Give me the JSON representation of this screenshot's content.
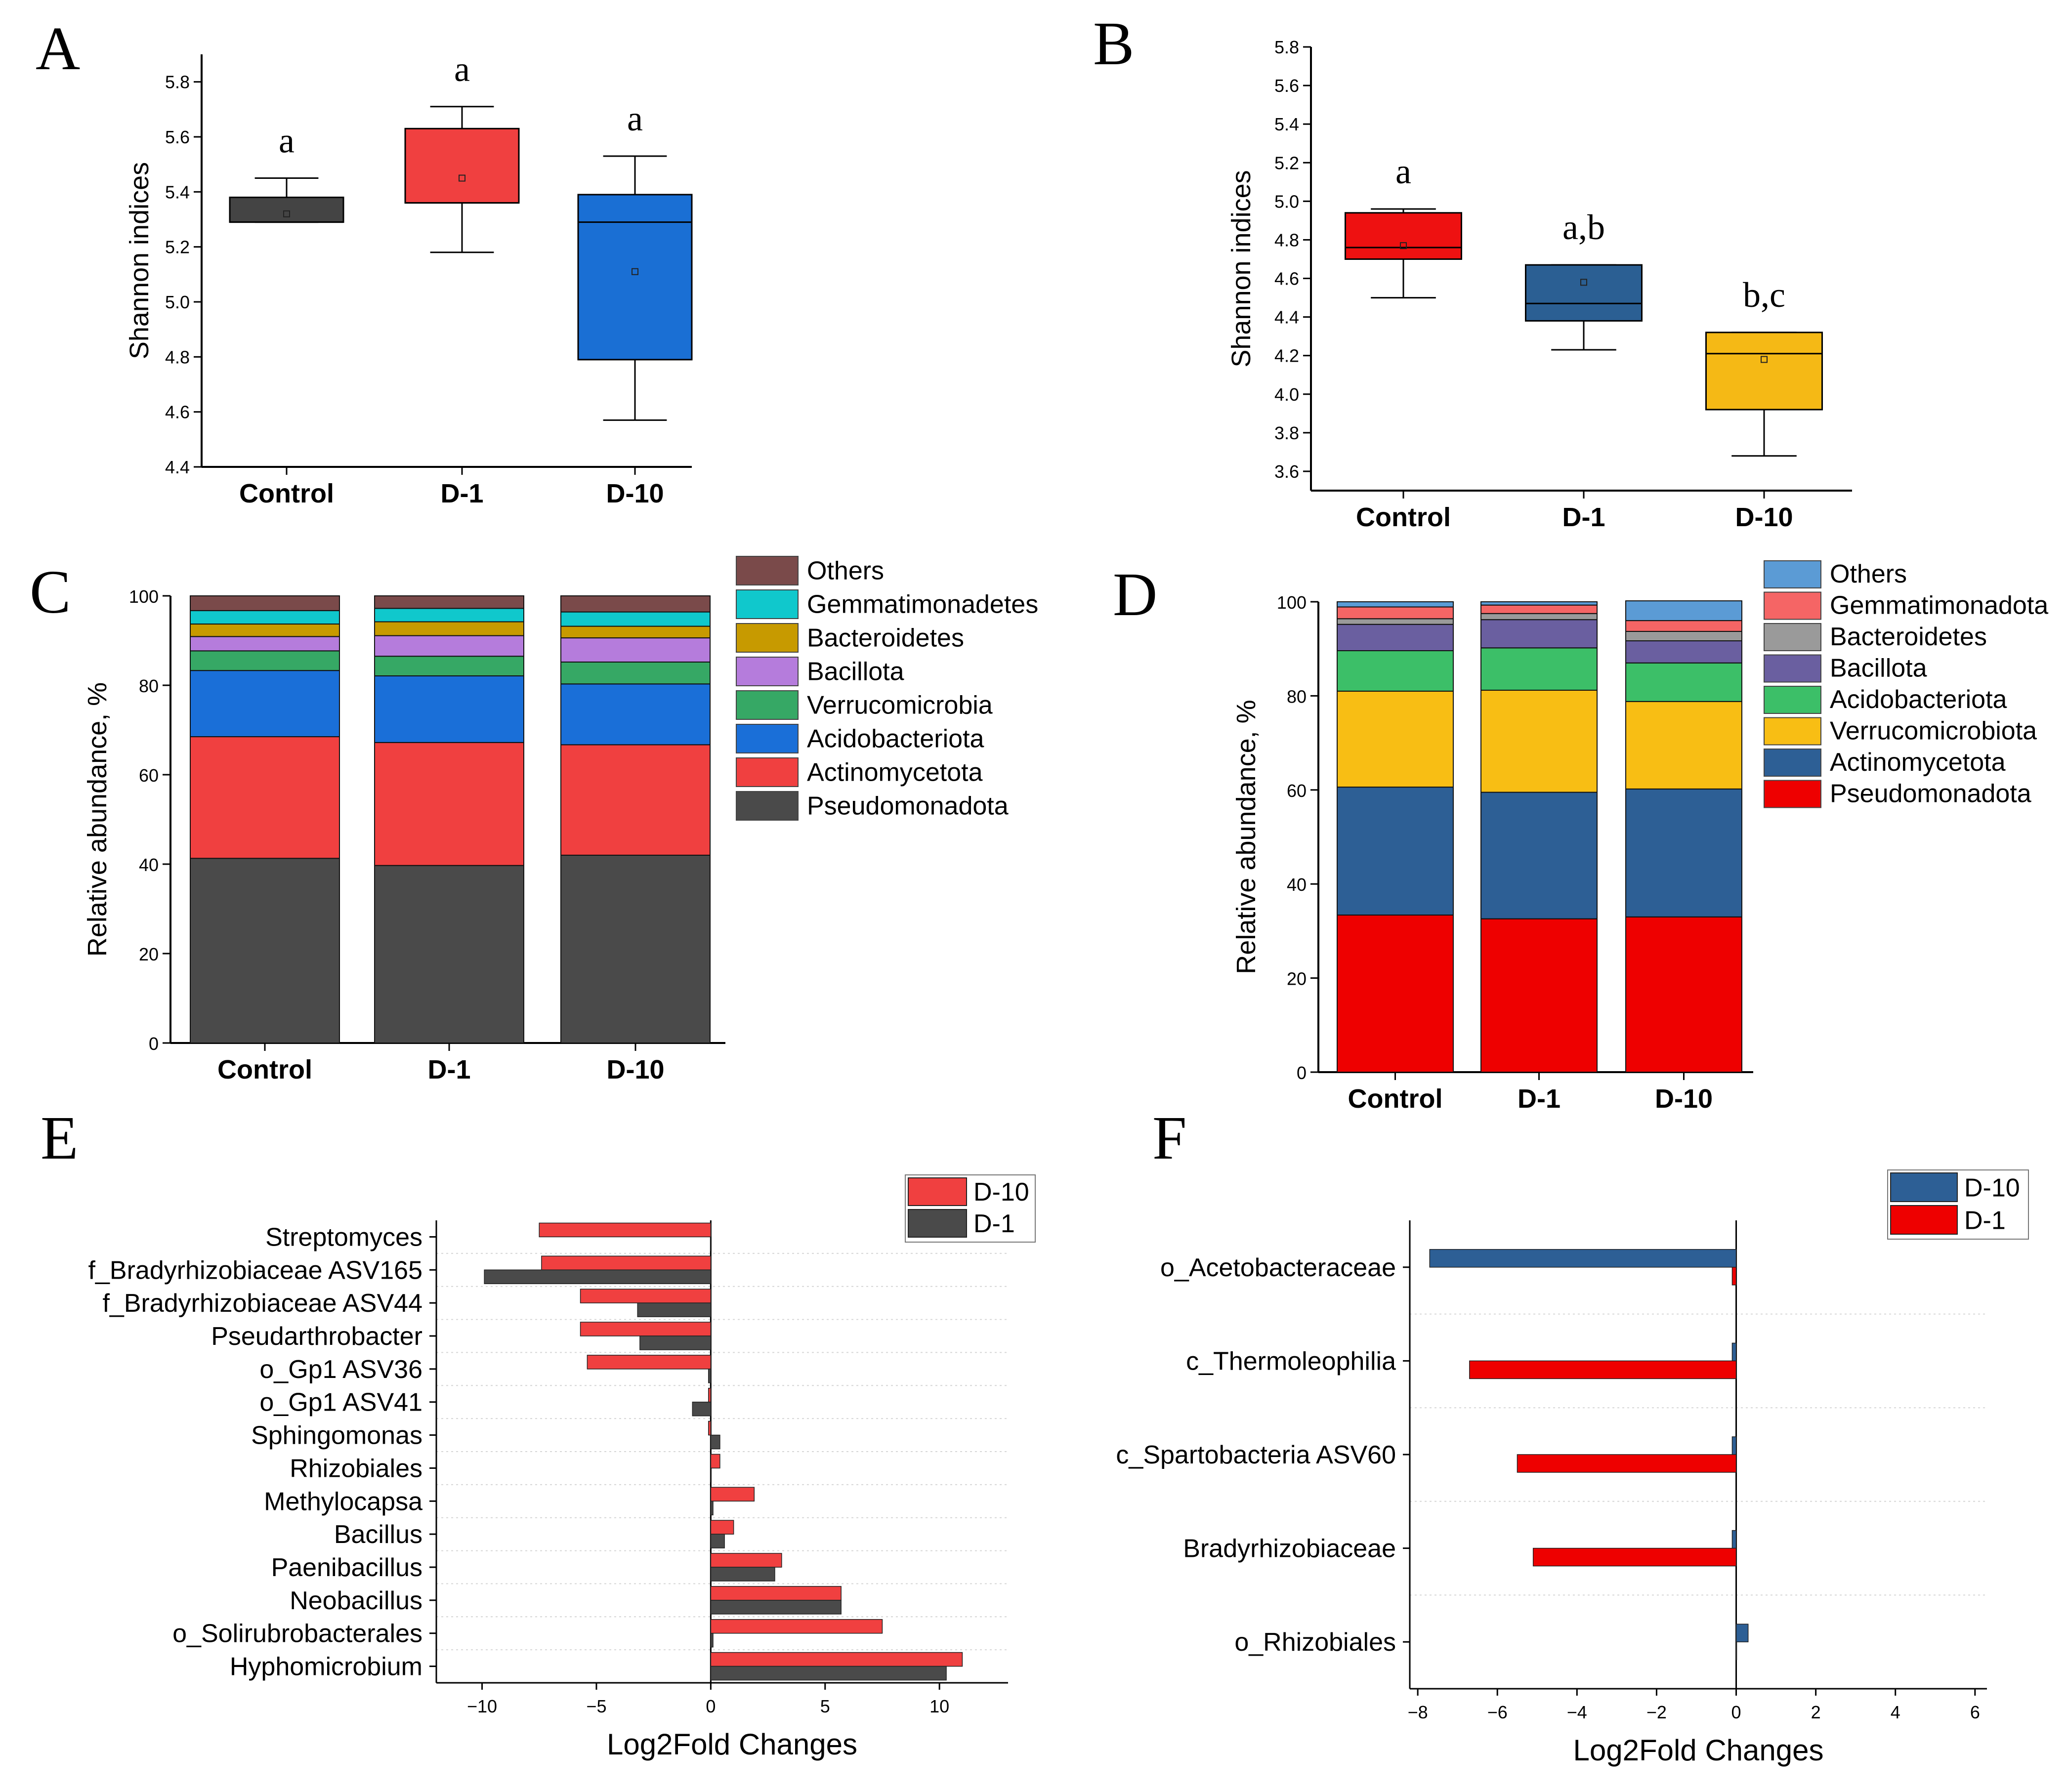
{
  "chart_data": [
    {
      "panel": "A",
      "type": "box",
      "ylabel": "Shannon indices",
      "ylim": [
        4.4,
        5.9
      ],
      "yticks": [
        "4.4",
        "4.6",
        "4.8",
        "5.0",
        "5.2",
        "5.4",
        "5.6",
        "5.8"
      ],
      "categories": [
        "Control",
        "D-1",
        "D-10"
      ],
      "colors": [
        "#444444",
        "#f04040",
        "#1a6fd4"
      ],
      "boxes": [
        {
          "whisker_low": 5.29,
          "q1": 5.29,
          "median": 5.29,
          "q3": 5.38,
          "whisker_high": 5.45,
          "mean": 5.32,
          "sig": "a"
        },
        {
          "whisker_low": 5.18,
          "q1": 5.36,
          "median": 5.36,
          "q3": 5.63,
          "whisker_high": 5.71,
          "mean": 5.45,
          "sig": "a"
        },
        {
          "whisker_low": 4.57,
          "q1": 4.79,
          "median": 5.29,
          "q3": 5.39,
          "whisker_high": 5.53,
          "mean": 5.11,
          "sig": "a"
        }
      ]
    },
    {
      "panel": "B",
      "type": "box",
      "ylabel": "Shannon indices",
      "ylim": [
        3.5,
        5.8
      ],
      "yticks": [
        "3.6",
        "3.8",
        "4.0",
        "4.2",
        "4.4",
        "4.6",
        "4.8",
        "5.0",
        "5.2",
        "5.4",
        "5.6",
        "5.8"
      ],
      "categories": [
        "Control",
        "D-1",
        "D-10"
      ],
      "colors": [
        "#ee1111",
        "#2b5f93",
        "#f5b915"
      ],
      "boxes": [
        {
          "whisker_low": 4.5,
          "q1": 4.7,
          "median": 4.76,
          "q3": 4.94,
          "whisker_high": 4.96,
          "mean": 4.77,
          "sig": "a"
        },
        {
          "whisker_low": 4.23,
          "q1": 4.38,
          "median": 4.47,
          "q3": 4.67,
          "whisker_high": 4.67,
          "mean": 4.58,
          "sig": "a,b"
        },
        {
          "whisker_low": 3.68,
          "q1": 3.92,
          "median": 4.21,
          "q3": 4.32,
          "whisker_high": 4.32,
          "mean": 4.18,
          "sig": "b,c"
        }
      ]
    },
    {
      "panel": "C",
      "type": "stacked_bar",
      "ylabel": "Relative abundance, %",
      "ylim": [
        0,
        100
      ],
      "yticks": [
        "0",
        "20",
        "40",
        "60",
        "80",
        "100"
      ],
      "categories": [
        "Control",
        "D-1",
        "D-10"
      ],
      "series": [
        {
          "name": "Pseudomonadota",
          "color": "#4a4a4a",
          "values": [
            41.3,
            39.7,
            42.0
          ]
        },
        {
          "name": "Actinomycetota",
          "color": "#f04040",
          "values": [
            27.2,
            27.5,
            24.7
          ]
        },
        {
          "name": "Acidobacteriota",
          "color": "#1a6fd8",
          "values": [
            14.8,
            14.9,
            13.6
          ]
        },
        {
          "name": "Verrucomicrobia",
          "color": "#36a865",
          "values": [
            4.4,
            4.4,
            4.9
          ]
        },
        {
          "name": "Bacillota",
          "color": "#b57cdc",
          "values": [
            3.2,
            4.6,
            5.4
          ]
        },
        {
          "name": "Bacteroidetes",
          "color": "#c79a00",
          "values": [
            2.8,
            3.1,
            2.6
          ]
        },
        {
          "name": "Gemmatimonadetes",
          "color": "#10c8cc",
          "values": [
            3.0,
            3.0,
            3.2
          ]
        },
        {
          "name": "Others",
          "color": "#7a4a4a",
          "values": [
            3.3,
            2.8,
            3.6
          ]
        }
      ]
    },
    {
      "panel": "D",
      "type": "stacked_bar",
      "ylabel": "Relative abundance, %",
      "ylim": [
        0,
        100
      ],
      "yticks": [
        "0",
        "20",
        "40",
        "60",
        "80",
        "100"
      ],
      "categories": [
        "Control",
        "D-1",
        "D-10"
      ],
      "series": [
        {
          "name": "Pseudomonadota",
          "color": "#ee0000",
          "values": [
            33.4,
            32.6,
            33.0
          ]
        },
        {
          "name": "Actinomycetota",
          "color": "#2d5f95",
          "values": [
            27.2,
            26.9,
            27.2
          ]
        },
        {
          "name": "Verrucomicrobiota",
          "color": "#f8be14",
          "values": [
            20.4,
            21.7,
            18.6
          ]
        },
        {
          "name": "Acidobacteriota",
          "color": "#3cbf68",
          "values": [
            8.6,
            9.0,
            8.2
          ]
        },
        {
          "name": "Bacillota",
          "color": "#6a5fa0",
          "values": [
            5.6,
            6.0,
            4.7
          ]
        },
        {
          "name": "Bacteroidetes",
          "color": "#9a9a9a",
          "values": [
            1.2,
            1.3,
            2.0
          ]
        },
        {
          "name": "Gemmatimonadota",
          "color": "#f56565",
          "values": [
            2.5,
            1.8,
            2.3
          ]
        },
        {
          "name": "Others",
          "color": "#5b9bd5",
          "values": [
            1.1,
            0.7,
            4.2
          ]
        }
      ]
    },
    {
      "panel": "E",
      "type": "bar_horizontal",
      "xlabel": "Log2Fold Changes",
      "xlim": [
        -12,
        13
      ],
      "xticks": [
        -10,
        -5,
        0,
        5,
        10
      ],
      "categories": [
        "Streptomyces",
        "f_Bradyrhizobiaceae ASV165",
        "f_Bradyrhizobiaceae ASV44",
        "Pseudarthrobacter",
        "o_Gp1 ASV36",
        "o_Gp1 ASV41",
        "Sphingomonas",
        "Rhizobiales",
        "Methylocapsa",
        "Bacillus",
        "Paenibacillus",
        "Neobacillus",
        "o_Solirubrobacterales",
        "Hyphomicrobium"
      ],
      "series": [
        {
          "name": "D-10",
          "color": "#f04040",
          "values": [
            -7.5,
            -7.4,
            -5.7,
            -5.7,
            -5.4,
            -0.1,
            -0.1,
            0.4,
            1.9,
            1.0,
            3.1,
            5.7,
            7.5,
            11.0
          ]
        },
        {
          "name": "D-1",
          "color": "#4a4a4a",
          "values": [
            0.0,
            -9.9,
            -3.2,
            -3.1,
            -0.1,
            -0.8,
            0.4,
            0.0,
            0.1,
            0.6,
            2.8,
            5.7,
            0.1,
            10.3
          ]
        }
      ]
    },
    {
      "panel": "F",
      "type": "bar_horizontal",
      "xlabel": "Log2Fold Changes",
      "xlim": [
        -8.2,
        6.3
      ],
      "xticks": [
        -8,
        -6,
        -4,
        -2,
        0,
        2,
        4,
        6
      ],
      "xtick_labels": [
        "−8",
        "−6",
        "−4",
        "−2",
        "0",
        "2",
        "4",
        "6"
      ],
      "categories": [
        "o_Acetobacteraceae",
        "c_Thermoleophilia",
        "c_Spartobacteria ASV60",
        "Bradyrhizobiaceae",
        "o_Rhizobiales"
      ],
      "series": [
        {
          "name": "D-10",
          "color": "#2d5f95",
          "values": [
            -7.7,
            -0.1,
            -0.1,
            -0.1,
            0.3
          ]
        },
        {
          "name": "D-1",
          "color": "#ee0000",
          "values": [
            -0.1,
            -6.7,
            -5.5,
            -5.1,
            0.0
          ]
        }
      ]
    }
  ],
  "panel_letters": [
    "A",
    "B",
    "C",
    "D",
    "E",
    "F"
  ]
}
